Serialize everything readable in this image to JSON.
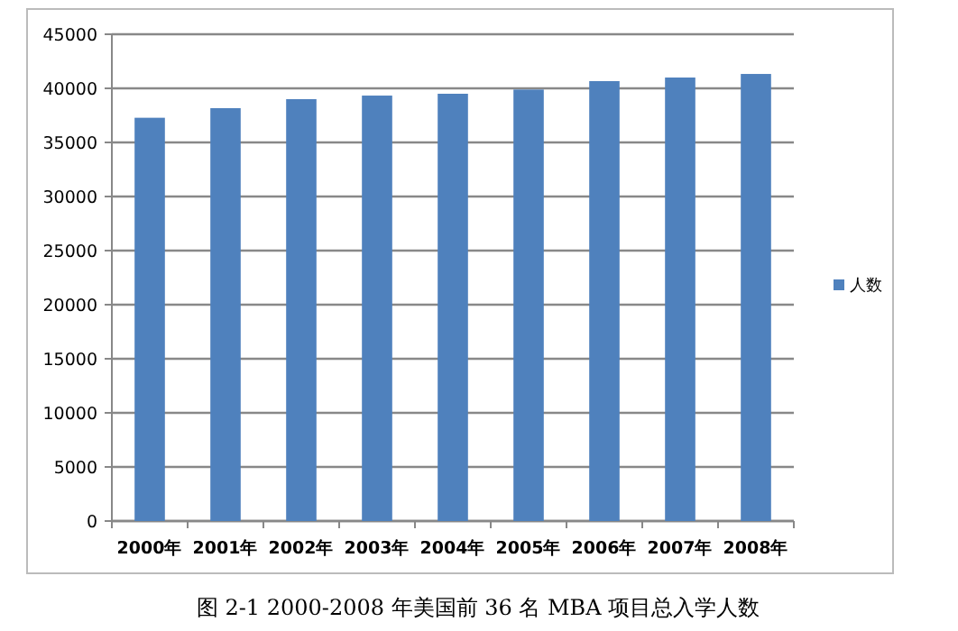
{
  "chart_data": {
    "type": "bar",
    "categories": [
      "2000年",
      "2001年",
      "2002年",
      "2003年",
      "2004年",
      "2005年",
      "2006年",
      "2007年",
      "2008年"
    ],
    "series": [
      {
        "name": "人数",
        "color": "#4f81bd",
        "values": [
          37280,
          38170,
          39000,
          39330,
          39500,
          39890,
          40670,
          41000,
          41330
        ]
      }
    ],
    "ylim": [
      0,
      45000
    ],
    "yticks": [
      0,
      5000,
      10000,
      15000,
      20000,
      25000,
      30000,
      35000,
      40000,
      45000
    ],
    "grid": "y",
    "legend": "right",
    "annotations": [
      "图 2-1 2000-2008 年美国前 36 名 MBA 项目总入学人数"
    ]
  }
}
